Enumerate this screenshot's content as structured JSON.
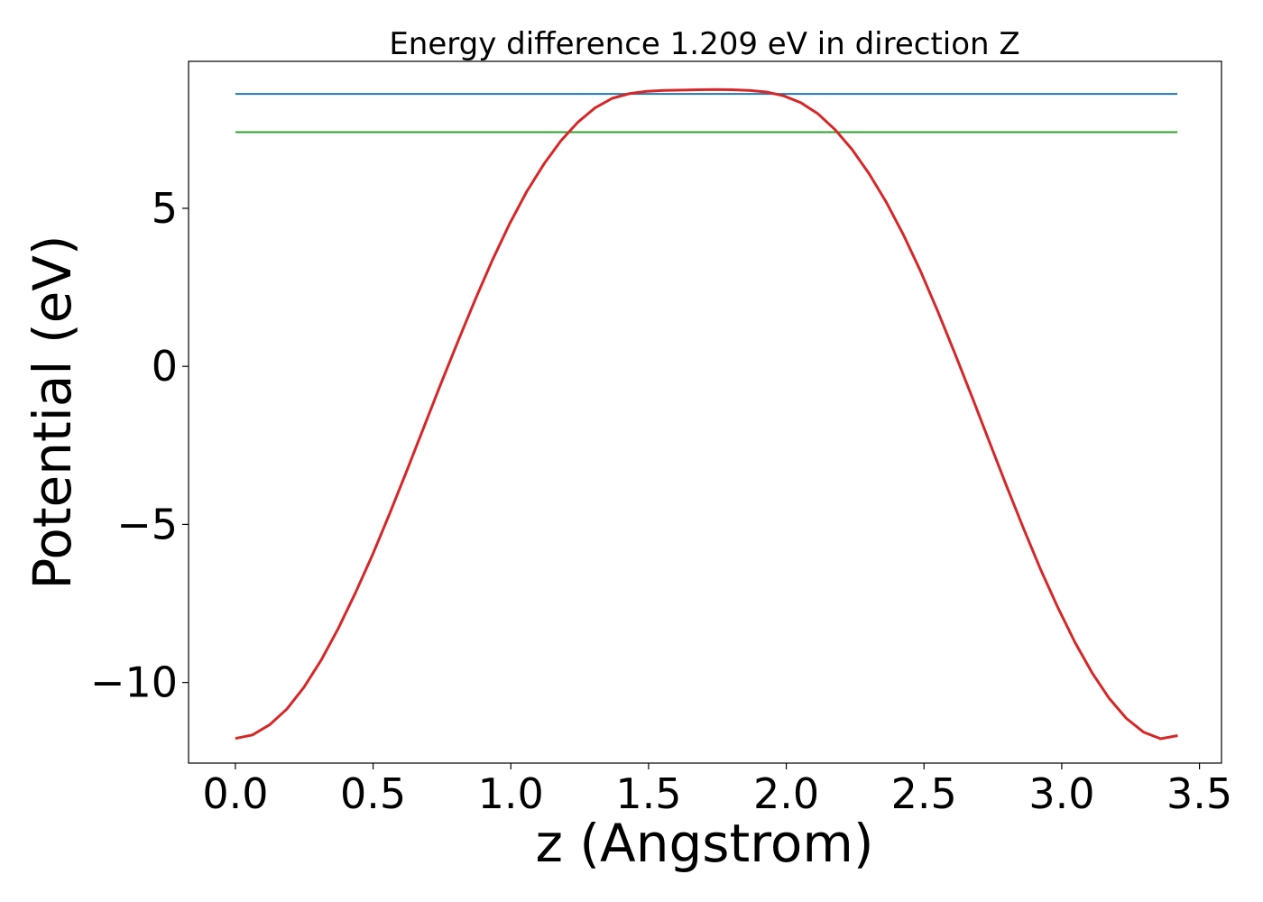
{
  "chart_data": {
    "type": "line",
    "title": "Energy difference 1.209 eV in direction Z",
    "xlabel": "z (Angstrom)",
    "ylabel": "Potential (eV)",
    "xlim": [
      -0.17,
      3.58
    ],
    "ylim": [
      -12.55,
      9.65
    ],
    "xticks": [
      0.0,
      0.5,
      1.0,
      1.5,
      2.0,
      2.5,
      3.0,
      3.5
    ],
    "xtick_labels": [
      "0.0",
      "0.5",
      "1.0",
      "1.5",
      "2.0",
      "2.5",
      "3.0",
      "3.5"
    ],
    "yticks": [
      -10,
      -5,
      0,
      5
    ],
    "ytick_labels": [
      "−10",
      "−5",
      "0",
      "5"
    ],
    "grid": false,
    "series": [
      {
        "color": "#1f77b4",
        "x": [
          0.0,
          3.42
        ],
        "y": [
          8.62,
          8.62
        ]
      },
      {
        "color": "#2ca02c",
        "x": [
          0.0,
          3.42
        ],
        "y": [
          7.41,
          7.41
        ]
      },
      {
        "color": "#d62728",
        "x": [
          0.0,
          0.062,
          0.124,
          0.187,
          0.249,
          0.311,
          0.373,
          0.435,
          0.498,
          0.56,
          0.622,
          0.684,
          0.746,
          0.809,
          0.871,
          0.933,
          0.995,
          1.057,
          1.12,
          1.182,
          1.244,
          1.306,
          1.368,
          1.431,
          1.493,
          1.555,
          1.617,
          1.679,
          1.742,
          1.804,
          1.866,
          1.928,
          1.99,
          2.053,
          2.115,
          2.177,
          2.239,
          2.301,
          2.364,
          2.426,
          2.488,
          2.55,
          2.612,
          2.675,
          2.737,
          2.799,
          2.861,
          2.923,
          2.986,
          3.048,
          3.11,
          3.172,
          3.234,
          3.297,
          3.359,
          3.421
        ],
        "y": [
          -11.77,
          -11.66,
          -11.34,
          -10.84,
          -10.15,
          -9.3,
          -8.3,
          -7.18,
          -5.96,
          -4.66,
          -3.31,
          -1.93,
          -0.55,
          0.81,
          2.12,
          3.36,
          4.5,
          5.52,
          6.4,
          7.14,
          7.73,
          8.18,
          8.48,
          8.63,
          8.7,
          8.73,
          8.74,
          8.75,
          8.76,
          8.75,
          8.73,
          8.68,
          8.56,
          8.34,
          7.99,
          7.49,
          6.86,
          6.09,
          5.18,
          4.15,
          3.0,
          1.74,
          0.41,
          -0.98,
          -2.38,
          -3.77,
          -5.12,
          -6.42,
          -7.63,
          -8.73,
          -9.69,
          -10.5,
          -11.13,
          -11.57,
          -11.78,
          -11.68
        ]
      }
    ]
  }
}
